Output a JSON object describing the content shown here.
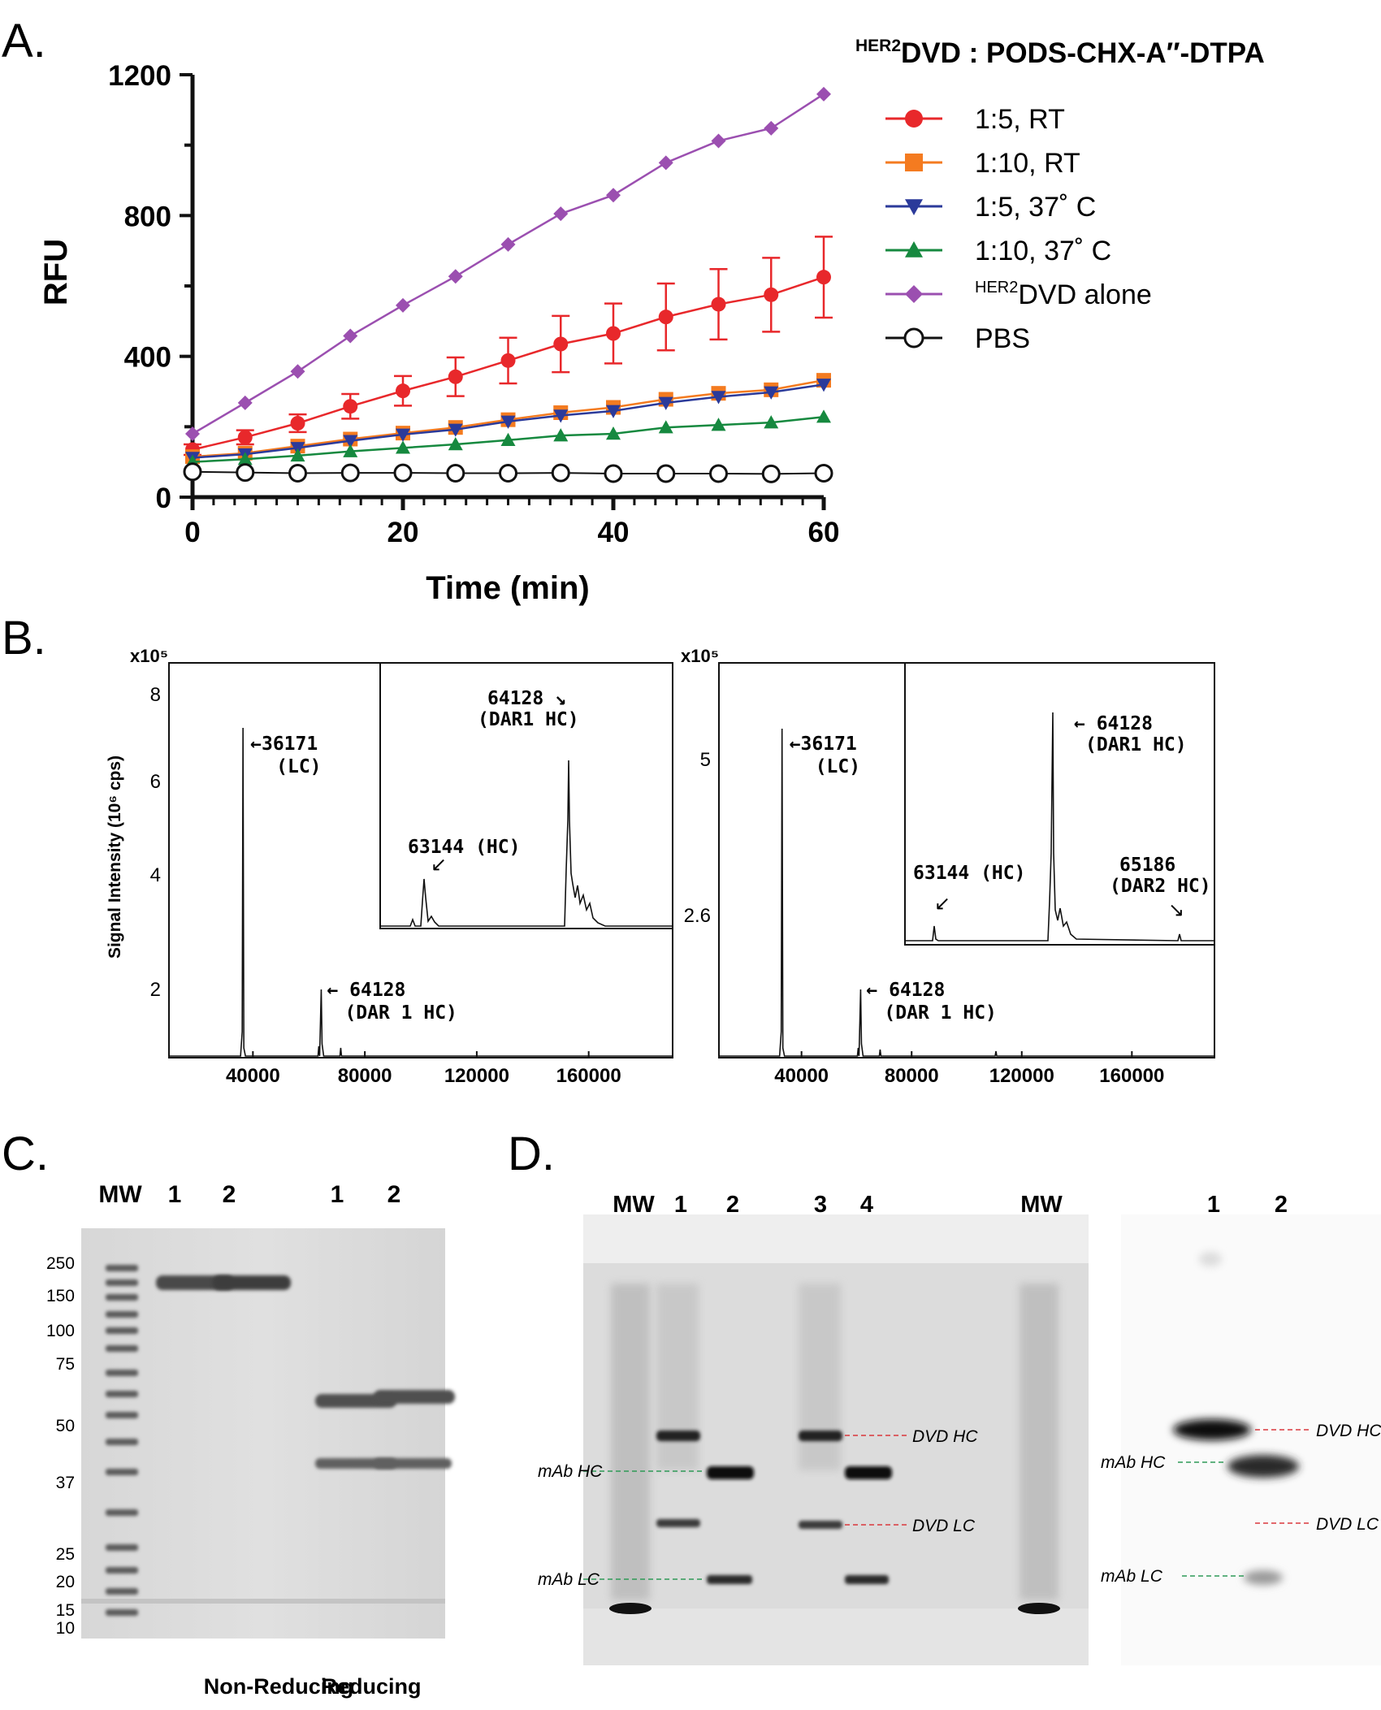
{
  "panel_labels": {
    "a": "A.",
    "b": "B.",
    "c": "C.",
    "d": "D."
  },
  "chart_data": [
    {
      "type": "line",
      "panel": "A",
      "title": "DVD : PODS-CHX-A′′-DTPA",
      "title_superscript": "HER2",
      "xlabel": "Time (min)",
      "ylabel": "RFU",
      "xlim": [
        0,
        60
      ],
      "ylim": [
        0,
        1200
      ],
      "xticks": [
        "0",
        "20",
        "40",
        "60"
      ],
      "yticks": [
        "0",
        "400",
        "800",
        "1200"
      ],
      "x": [
        0,
        5,
        10,
        15,
        20,
        25,
        30,
        35,
        40,
        45,
        50,
        55,
        60
      ],
      "legend_position": "top-right",
      "series": [
        {
          "name": "1:5, RT",
          "color": "#e8282b",
          "marker": "circle",
          "values": [
            135,
            170,
            210,
            258,
            302,
            342,
            388,
            435,
            465,
            512,
            548,
            575,
            625
          ],
          "errors": [
            15,
            20,
            25,
            35,
            42,
            55,
            65,
            80,
            85,
            95,
            100,
            105,
            115
          ]
        },
        {
          "name": "1:10, RT",
          "color": "#f47b20",
          "marker": "square",
          "values": [
            115,
            125,
            145,
            165,
            182,
            198,
            220,
            240,
            255,
            278,
            295,
            305,
            332
          ]
        },
        {
          "name": "1:5, 37˚ C",
          "color": "#2b3a9a",
          "marker": "triangle-down",
          "values": [
            112,
            122,
            140,
            160,
            178,
            192,
            215,
            232,
            245,
            268,
            285,
            298,
            320
          ]
        },
        {
          "name": "1:10, 37˚ C",
          "color": "#16893f",
          "marker": "triangle-up",
          "values": [
            100,
            108,
            118,
            130,
            140,
            150,
            162,
            175,
            180,
            198,
            205,
            212,
            228
          ]
        },
        {
          "name": "DVD alone",
          "name_superscript": "HER2",
          "color": "#9b4fb0",
          "marker": "diamond",
          "values": [
            180,
            268,
            357,
            458,
            545,
            627,
            718,
            805,
            858,
            950,
            1012,
            1048,
            1145
          ]
        },
        {
          "name": "PBS",
          "color": "#111111",
          "marker": "open-circle",
          "values": [
            72,
            70,
            68,
            69,
            69,
            68,
            68,
            69,
            67,
            67,
            67,
            66,
            68
          ]
        }
      ]
    },
    {
      "type": "line",
      "panel": "B-left",
      "ylabel": "Signal Intensity (10⁶ cps)",
      "y_multiplier": "x10⁵",
      "yticks": [
        "2",
        "4",
        "6",
        "8"
      ],
      "xticks": [
        "40000",
        "80000",
        "120000",
        "160000"
      ],
      "xlim": [
        10000,
        190000
      ],
      "ylim": [
        0.8,
        8.8
      ],
      "peaks": [
        {
          "x": 36171,
          "y": 7.3,
          "label": "←36171",
          "sublabel": "(LC)"
        },
        {
          "x": 64128,
          "y": 2.0,
          "label": "← 64128",
          "sublabel": "(DAR 1 HC)"
        }
      ],
      "inset_peaks": [
        {
          "label": "63144 (HC)"
        },
        {
          "label": "64128 ↘",
          "sublabel": "(DAR1 HC)"
        }
      ]
    },
    {
      "type": "line",
      "panel": "B-right",
      "y_multiplier": "x10⁵",
      "yticks": [
        "2.6",
        "5"
      ],
      "xticks": [
        "40000",
        "80000",
        "120000",
        "160000"
      ],
      "xlim": [
        10000,
        190000
      ],
      "peaks": [
        {
          "x": 36171,
          "label": "←36171",
          "sublabel": "(LC)"
        },
        {
          "x": 64128,
          "label": "← 64128",
          "sublabel": "(DAR 1 HC)"
        }
      ],
      "inset_peaks": [
        {
          "label": "63144 (HC)"
        },
        {
          "label": "← 64128",
          "sublabel": "(DAR1 HC)"
        },
        {
          "label": "65186",
          "sublabel": "(DAR2 HC)"
        }
      ]
    }
  ],
  "gel_c": {
    "lanes": [
      "MW",
      "1",
      "2",
      "1",
      "2"
    ],
    "mw_markers": [
      "250",
      "150",
      "100",
      "75",
      "50",
      "37",
      "25",
      "20",
      "15",
      "10"
    ],
    "groups": [
      "Non-Reducing",
      "Reducing"
    ]
  },
  "gel_d": {
    "left_lanes": [
      "MW",
      "1",
      "2",
      "3",
      "4",
      "MW"
    ],
    "right_lanes": [
      "1",
      "2"
    ],
    "band_labels": {
      "dvd_hc": "DVD HC",
      "mab_hc": "mAb HC",
      "dvd_lc": "DVD LC",
      "mab_lc": "mAb LC"
    },
    "label_colors": {
      "dvd": "#d9373c",
      "mab": "#2e9a57"
    }
  }
}
